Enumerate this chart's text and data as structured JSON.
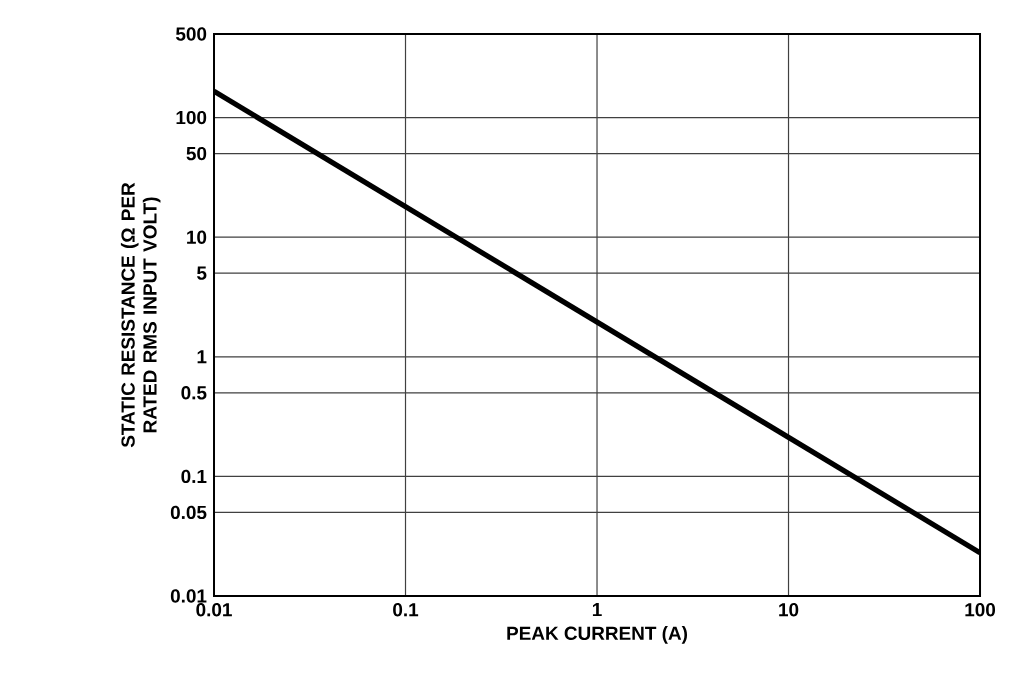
{
  "chart_data": {
    "type": "line",
    "xlabel": "PEAK CURRENT (A)",
    "ylabel": "STATIC RESISTANCE (Ω PER RATED RMS INPUT VOLT)",
    "log": "xy",
    "grid": true,
    "xlim": [
      0.01,
      100
    ],
    "ylim": [
      0.01,
      500
    ],
    "xticks": [
      0.01,
      0.1,
      1,
      10,
      100
    ],
    "yticks": [
      0.01,
      0.05,
      0.1,
      0.5,
      1,
      5,
      10,
      50,
      100,
      500
    ],
    "series": [
      {
        "color": "#000000",
        "x": [
          0.01,
          100
        ],
        "values": [
          166,
          0.023
        ]
      }
    ],
    "marker": "none",
    "line_style": "solid"
  }
}
